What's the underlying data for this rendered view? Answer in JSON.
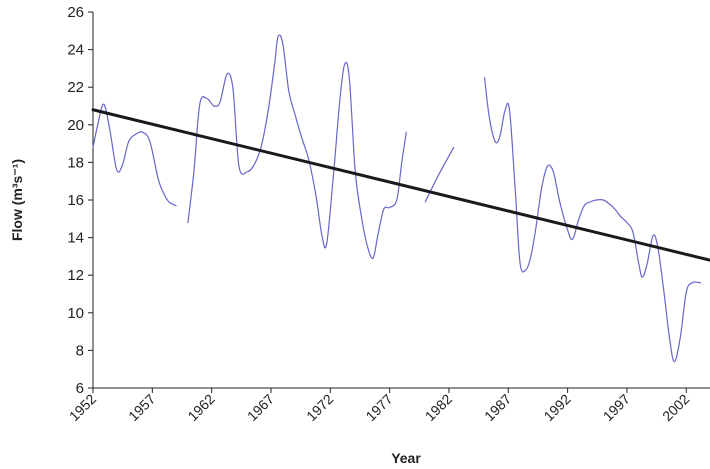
{
  "chart_data": {
    "type": "line",
    "title": "",
    "xlabel": "Year",
    "ylabel": "Flow (m³s⁻¹)",
    "xlim": [
      1952,
      2004
    ],
    "ylim": [
      6,
      26
    ],
    "x_ticks": [
      "1952",
      "1957",
      "1962",
      "1967",
      "1972",
      "1977",
      "1982",
      "1987",
      "1992",
      "1997",
      "2002"
    ],
    "y_ticks": [
      "6",
      "8",
      "10",
      "12",
      "14",
      "16",
      "18",
      "20",
      "22",
      "24",
      "26"
    ],
    "grid": false,
    "legend": "none",
    "series": [
      {
        "style": "thin",
        "color": "#6666cc",
        "segments": [
          {
            "x": [
              1952,
              1952.4,
              1952.9,
              1953.4,
              1954,
              1954.5,
              1955,
              1955.6,
              1956.2,
              1956.8,
              1957.5,
              1958,
              1958.4,
              1959
            ],
            "y": [
              18.8,
              20.0,
              21.1,
              19.8,
              17.6,
              17.9,
              19.1,
              19.5,
              19.6,
              19.1,
              17.1,
              16.3,
              15.9,
              15.7
            ]
          },
          {
            "x": [
              1960,
              1960.5,
              1961,
              1961.6,
              1962.2,
              1962.7,
              1963.3,
              1963.8,
              1964.3,
              1965,
              1965.6,
              1966.2,
              1966.8,
              1967.3,
              1967.6,
              1968,
              1968.5,
              1969,
              1969.6,
              1970.2,
              1970.8,
              1971.3,
              1971.7,
              1972.3,
              1972.8,
              1973.2,
              1973.6,
              1974.1,
              1974.6,
              1975.1,
              1975.6,
              1976,
              1976.5,
              1977,
              1977.6,
              1978,
              1978.4
            ],
            "y": [
              14.8,
              17.5,
              21.1,
              21.4,
              21.0,
              21.2,
              22.7,
              21.9,
              17.8,
              17.5,
              17.9,
              18.9,
              20.9,
              23.2,
              24.7,
              24.3,
              21.8,
              20.6,
              19.3,
              18.1,
              16.2,
              14.1,
              13.7,
              17.6,
              21.3,
              23.2,
              22.5,
              17.5,
              15.2,
              13.6,
              12.9,
              14.1,
              15.5,
              15.6,
              16.0,
              17.9,
              19.6
            ]
          },
          {
            "x": [
              1980,
              1981.1,
              1982.4
            ],
            "y": [
              15.9,
              17.3,
              18.8
            ]
          },
          {
            "x": [
              1985,
              1985.4,
              1985.9,
              1986.3,
              1986.7,
              1987.1,
              1987.6,
              1988,
              1988.5,
              1988.9,
              1989.3,
              1989.8,
              1990.3,
              1990.8,
              1991.3,
              1991.9,
              1992.4,
              1992.9,
              1993.4,
              1993.9,
              1994.4,
              1995,
              1995.5,
              1996,
              1996.5,
              1997,
              1997.5,
              1998,
              1998.3,
              1998.7,
              1999.2,
              1999.6,
              2000.1,
              2000.6,
              2001,
              2001.5,
              2002,
              2002.5,
              2003.2
            ],
            "y": [
              22.5,
              20.4,
              19.1,
              19.4,
              20.7,
              20.8,
              16.4,
              12.6,
              12.3,
              13.0,
              14.4,
              16.6,
              17.8,
              17.5,
              16.0,
              14.6,
              13.9,
              14.9,
              15.7,
              15.9,
              16.0,
              16.0,
              15.8,
              15.5,
              15.1,
              14.8,
              14.3,
              12.6,
              11.9,
              12.6,
              14.1,
              13.5,
              11.2,
              8.6,
              7.4,
              8.7,
              11.1,
              11.6,
              11.6
            ]
          }
        ]
      },
      {
        "style": "trend",
        "color": "#1a1a1a",
        "segments": [
          {
            "x": [
              1952,
              2004
            ],
            "y": [
              20.8,
              12.8
            ]
          }
        ]
      }
    ]
  }
}
